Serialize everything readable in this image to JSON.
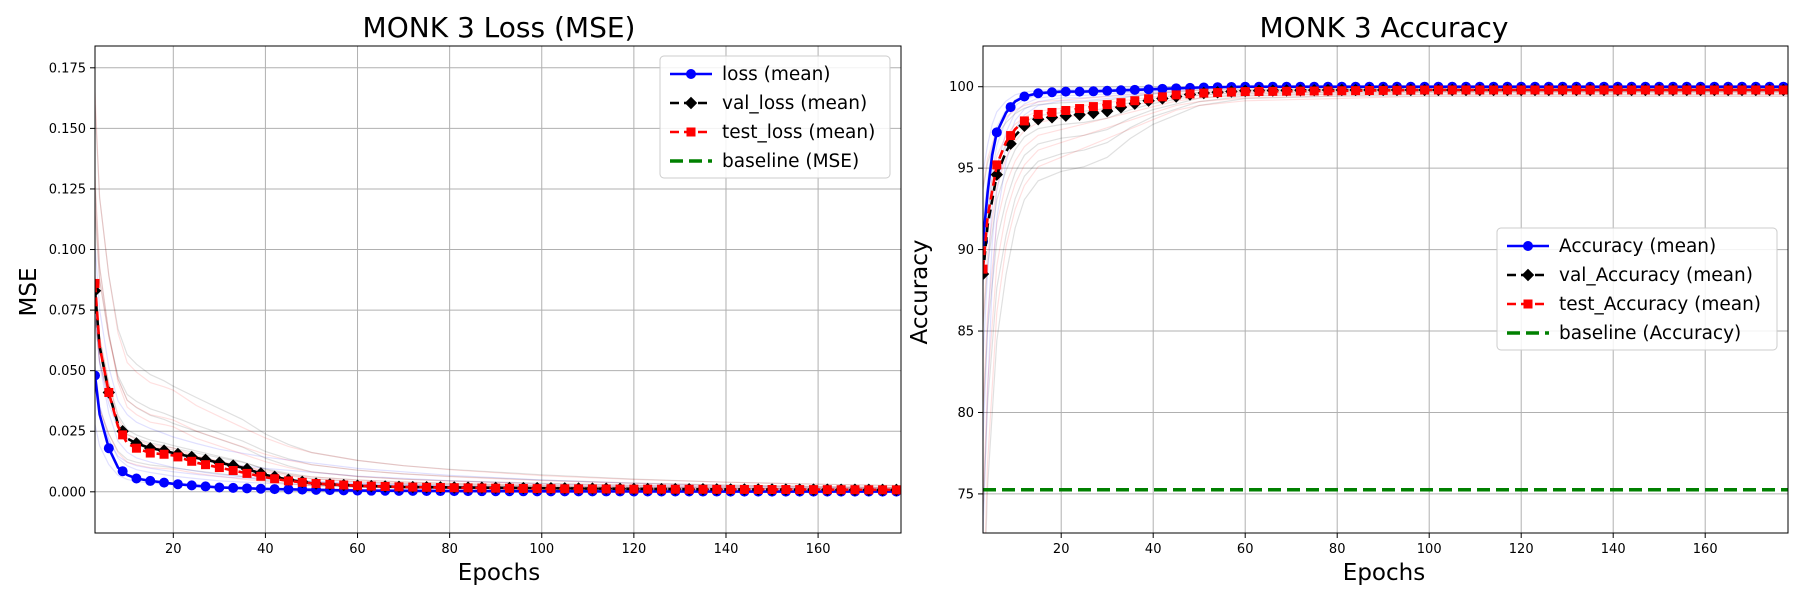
{
  "chart_data": [
    {
      "type": "line",
      "title": "MONK 3 Loss (MSE)",
      "xlabel": "Epochs",
      "ylabel": "MSE",
      "xlim": [
        3,
        178
      ],
      "ylim": [
        -0.017,
        0.184
      ],
      "xticks": [
        20,
        40,
        60,
        80,
        100,
        120,
        140,
        160
      ],
      "xtick_labels": [
        "20",
        "40",
        "60",
        "80",
        "100",
        "120",
        "140",
        "160"
      ],
      "yticks": [
        0.0,
        0.025,
        0.05,
        0.075,
        0.1,
        0.125,
        0.15,
        0.175
      ],
      "ytick_labels": [
        "0.000",
        "0.025",
        "0.050",
        "0.075",
        "0.100",
        "0.125",
        "0.150",
        "0.175"
      ],
      "grid": true,
      "legend_position": "top-right",
      "series": [
        {
          "name": "loss (mean)",
          "color": "#0000ff",
          "marker": "circle",
          "dash": "solid",
          "x": [
            3,
            4,
            6,
            8,
            10,
            12,
            15,
            18,
            20,
            25,
            30,
            40,
            60,
            80,
            100,
            120,
            140,
            160,
            178
          ],
          "y": [
            0.048,
            0.032,
            0.018,
            0.01,
            0.007,
            0.0055,
            0.0045,
            0.0038,
            0.0033,
            0.0025,
            0.0018,
            0.0012,
            0.0005,
            0.0003,
            0.0002,
            0.00015,
            0.0001,
            0.0001,
            0.0001
          ]
        },
        {
          "name": "val_loss (mean)",
          "color": "#000000",
          "marker": "diamond",
          "dash": "dashed",
          "x": [
            3,
            4,
            6,
            8,
            10,
            12,
            15,
            18,
            20,
            25,
            30,
            35,
            40,
            45,
            50,
            60,
            70,
            80,
            100,
            120,
            140,
            160,
            178
          ],
          "y": [
            0.083,
            0.06,
            0.041,
            0.028,
            0.022,
            0.02,
            0.018,
            0.017,
            0.016,
            0.014,
            0.012,
            0.01,
            0.007,
            0.005,
            0.0035,
            0.0025,
            0.002,
            0.0018,
            0.0015,
            0.0012,
            0.001,
            0.0009,
            0.0008
          ]
        },
        {
          "name": "test_loss (mean)",
          "color": "#ff0000",
          "marker": "square",
          "dash": "dashed",
          "x": [
            3,
            4,
            6,
            8,
            10,
            12,
            15,
            18,
            20,
            25,
            30,
            35,
            40,
            45,
            50,
            60,
            70,
            80,
            100,
            120,
            140,
            160,
            178
          ],
          "y": [
            0.086,
            0.06,
            0.041,
            0.027,
            0.02,
            0.018,
            0.016,
            0.0155,
            0.015,
            0.012,
            0.01,
            0.008,
            0.006,
            0.0045,
            0.0035,
            0.0025,
            0.002,
            0.0017,
            0.0013,
            0.0011,
            0.001,
            0.0009,
            0.0008
          ]
        },
        {
          "name": "baseline (MSE)",
          "color": "#008000",
          "marker": "none",
          "dash": "dashed",
          "x": [],
          "y": []
        }
      ]
    },
    {
      "type": "line",
      "title": "MONK 3 Accuracy",
      "xlabel": "Epochs",
      "ylabel": "Accuracy",
      "xlim": [
        3,
        178
      ],
      "ylim": [
        72.6,
        102.5
      ],
      "xticks": [
        20,
        40,
        60,
        80,
        100,
        120,
        140,
        160
      ],
      "xtick_labels": [
        "20",
        "40",
        "60",
        "80",
        "100",
        "120",
        "140",
        "160"
      ],
      "yticks": [
        75,
        80,
        85,
        90,
        95,
        100
      ],
      "ytick_labels": [
        "75",
        "80",
        "85",
        "90",
        "95",
        "100"
      ],
      "grid": true,
      "legend_position": "center-right",
      "series": [
        {
          "name": "Accuracy (mean)",
          "color": "#0000ff",
          "marker": "circle",
          "dash": "solid",
          "x": [
            3,
            4,
            5,
            6,
            8,
            10,
            12,
            15,
            20,
            25,
            30,
            40,
            50,
            60,
            80,
            100,
            120,
            140,
            160,
            178
          ],
          "y": [
            90.5,
            93.5,
            95.8,
            97.2,
            98.4,
            99.1,
            99.4,
            99.6,
            99.7,
            99.7,
            99.75,
            99.85,
            99.95,
            100,
            100,
            100,
            100,
            100,
            100,
            100
          ]
        },
        {
          "name": "val_Accuracy (mean)",
          "color": "#000000",
          "marker": "diamond",
          "dash": "dashed",
          "x": [
            3,
            4,
            6,
            8,
            10,
            12,
            15,
            20,
            25,
            30,
            35,
            40,
            45,
            50,
            60,
            80,
            100,
            120,
            140,
            160,
            178
          ],
          "y": [
            88.5,
            91.5,
            94.6,
            96.0,
            97.0,
            97.6,
            98.0,
            98.2,
            98.3,
            98.5,
            98.9,
            99.2,
            99.4,
            99.6,
            99.75,
            99.8,
            99.8,
            99.8,
            99.8,
            99.8,
            99.8
          ]
        },
        {
          "name": "test_Accuracy (mean)",
          "color": "#ff0000",
          "marker": "square",
          "dash": "dashed",
          "x": [
            3,
            4,
            6,
            8,
            10,
            12,
            15,
            20,
            25,
            30,
            35,
            40,
            45,
            50,
            60,
            80,
            100,
            120,
            140,
            160,
            178
          ],
          "y": [
            88.8,
            92.0,
            95.2,
            96.6,
            97.4,
            97.9,
            98.3,
            98.5,
            98.7,
            98.9,
            99.1,
            99.3,
            99.5,
            99.6,
            99.7,
            99.75,
            99.8,
            99.8,
            99.8,
            99.8,
            99.8
          ]
        },
        {
          "name": "baseline (Accuracy)",
          "color": "#008000",
          "marker": "none",
          "dash": "dashed",
          "x": [
            3,
            178
          ],
          "y": [
            75.25,
            75.25
          ]
        }
      ]
    }
  ]
}
